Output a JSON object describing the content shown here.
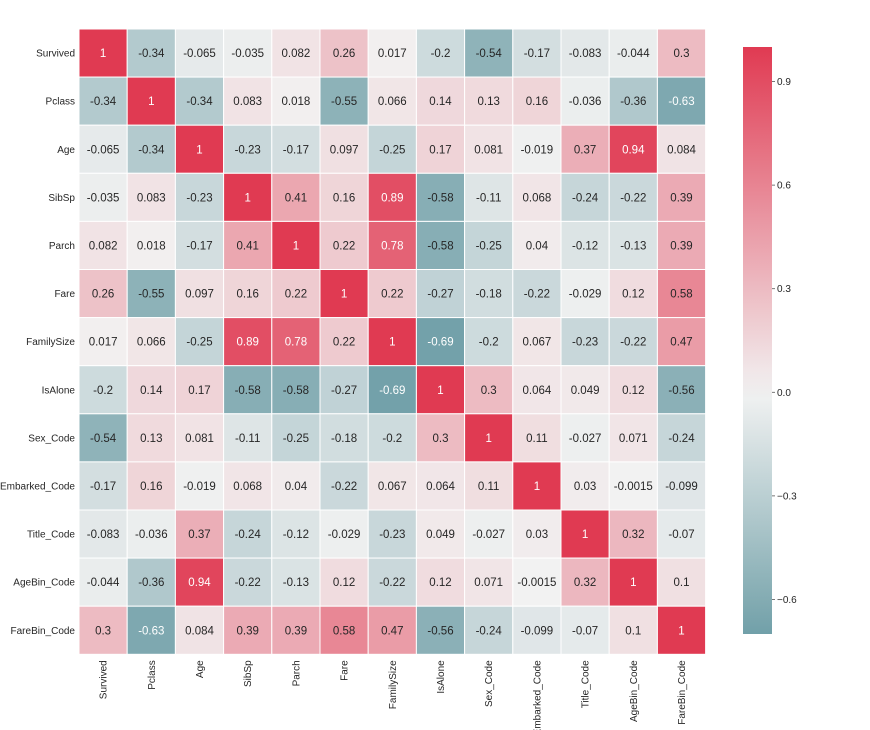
{
  "chart_data": {
    "type": "heatmap",
    "title": "",
    "xlabel": "",
    "ylabel": "",
    "rows": [
      "Survived",
      "Pclass",
      "Age",
      "SibSp",
      "Parch",
      "Fare",
      "FamilySize",
      "IsAlone",
      "Sex_Code",
      "Embarked_Code",
      "Title_Code",
      "AgeBin_Code",
      "FareBin_Code"
    ],
    "columns": [
      "Survived",
      "Pclass",
      "Age",
      "SibSp",
      "Parch",
      "Fare",
      "FamilySize",
      "IsAlone",
      "Sex_Code",
      "Embarked_Code",
      "Title_Code",
      "AgeBin_Code",
      "FareBin_Code"
    ],
    "values": [
      [
        1,
        -0.34,
        -0.065,
        -0.035,
        0.082,
        0.26,
        0.017,
        -0.2,
        -0.54,
        -0.17,
        -0.083,
        -0.044,
        0.3
      ],
      [
        -0.34,
        1,
        -0.34,
        0.083,
        0.018,
        -0.55,
        0.066,
        0.14,
        0.13,
        0.16,
        -0.036,
        -0.36,
        -0.63
      ],
      [
        -0.065,
        -0.34,
        1,
        -0.23,
        -0.17,
        0.097,
        -0.25,
        0.17,
        0.081,
        -0.019,
        0.37,
        0.94,
        0.084
      ],
      [
        -0.035,
        0.083,
        -0.23,
        1,
        0.41,
        0.16,
        0.89,
        -0.58,
        -0.11,
        0.068,
        -0.24,
        -0.22,
        0.39
      ],
      [
        0.082,
        0.018,
        -0.17,
        0.41,
        1,
        0.22,
        0.78,
        -0.58,
        -0.25,
        0.04,
        -0.12,
        -0.13,
        0.39
      ],
      [
        0.26,
        -0.55,
        0.097,
        0.16,
        0.22,
        1,
        0.22,
        -0.27,
        -0.18,
        -0.22,
        -0.029,
        0.12,
        0.58
      ],
      [
        0.017,
        0.066,
        -0.25,
        0.89,
        0.78,
        0.22,
        1,
        -0.69,
        -0.2,
        0.067,
        -0.23,
        -0.22,
        0.47
      ],
      [
        -0.2,
        0.14,
        0.17,
        -0.58,
        -0.58,
        -0.27,
        -0.69,
        1,
        0.3,
        0.064,
        0.049,
        0.12,
        -0.56
      ],
      [
        -0.54,
        0.13,
        0.081,
        -0.11,
        -0.25,
        -0.18,
        -0.2,
        0.3,
        1,
        0.11,
        -0.027,
        0.071,
        -0.24
      ],
      [
        -0.17,
        0.16,
        -0.019,
        0.068,
        0.04,
        -0.22,
        0.067,
        0.064,
        0.11,
        1,
        0.03,
        -0.0015,
        -0.099
      ],
      [
        -0.083,
        -0.036,
        0.37,
        -0.24,
        -0.12,
        -0.029,
        -0.23,
        0.049,
        -0.027,
        0.03,
        1,
        0.32,
        -0.07
      ],
      [
        -0.044,
        -0.36,
        0.94,
        -0.22,
        -0.13,
        0.12,
        -0.22,
        0.12,
        0.071,
        -0.0015,
        0.32,
        1,
        0.1
      ],
      [
        0.3,
        -0.63,
        0.084,
        0.39,
        0.39,
        0.58,
        0.47,
        -0.56,
        -0.24,
        -0.099,
        -0.07,
        0.1,
        1
      ]
    ],
    "value_labels": [
      [
        "1",
        "-0.34",
        "-0.065",
        "-0.035",
        "0.082",
        "0.26",
        "0.017",
        "-0.2",
        "-0.54",
        "-0.17",
        "-0.083",
        "-0.044",
        "0.3"
      ],
      [
        "-0.34",
        "1",
        "-0.34",
        "0.083",
        "0.018",
        "-0.55",
        "0.066",
        "0.14",
        "0.13",
        "0.16",
        "-0.036",
        "-0.36",
        "-0.63"
      ],
      [
        "-0.065",
        "-0.34",
        "1",
        "-0.23",
        "-0.17",
        "0.097",
        "-0.25",
        "0.17",
        "0.081",
        "-0.019",
        "0.37",
        "0.94",
        "0.084"
      ],
      [
        "-0.035",
        "0.083",
        "-0.23",
        "1",
        "0.41",
        "0.16",
        "0.89",
        "-0.58",
        "-0.11",
        "0.068",
        "-0.24",
        "-0.22",
        "0.39"
      ],
      [
        "0.082",
        "0.018",
        "-0.17",
        "0.41",
        "1",
        "0.22",
        "0.78",
        "-0.58",
        "-0.25",
        "0.04",
        "-0.12",
        "-0.13",
        "0.39"
      ],
      [
        "0.26",
        "-0.55",
        "0.097",
        "0.16",
        "0.22",
        "1",
        "0.22",
        "-0.27",
        "-0.18",
        "-0.22",
        "-0.029",
        "0.12",
        "0.58"
      ],
      [
        "0.017",
        "0.066",
        "-0.25",
        "0.89",
        "0.78",
        "0.22",
        "1",
        "-0.69",
        "-0.2",
        "0.067",
        "-0.23",
        "-0.22",
        "0.47"
      ],
      [
        "-0.2",
        "0.14",
        "0.17",
        "-0.58",
        "-0.58",
        "-0.27",
        "-0.69",
        "1",
        "0.3",
        "0.064",
        "0.049",
        "0.12",
        "-0.56"
      ],
      [
        "-0.54",
        "0.13",
        "0.081",
        "-0.11",
        "-0.25",
        "-0.18",
        "-0.2",
        "0.3",
        "1",
        "0.11",
        "-0.027",
        "0.071",
        "-0.24"
      ],
      [
        "-0.17",
        "0.16",
        "-0.019",
        "0.068",
        "0.04",
        "-0.22",
        "0.067",
        "0.064",
        "0.11",
        "1",
        "0.03",
        "-0.0015",
        "-0.099"
      ],
      [
        "-0.083",
        "-0.036",
        "0.37",
        "-0.24",
        "-0.12",
        "-0.029",
        "-0.23",
        "0.049",
        "-0.027",
        "0.03",
        "1",
        "0.32",
        "-0.07"
      ],
      [
        "-0.044",
        "-0.36",
        "0.94",
        "-0.22",
        "-0.13",
        "0.12",
        "-0.22",
        "0.12",
        "0.071",
        "-0.0015",
        "0.32",
        "1",
        "0.1"
      ],
      [
        "0.3",
        "-0.63",
        "0.084",
        "0.39",
        "0.39",
        "0.58",
        "0.47",
        "-0.56",
        "-0.24",
        "-0.099",
        "-0.07",
        "0.1",
        "1"
      ]
    ],
    "colorbar": {
      "vmin": -0.7,
      "vmax": 1.0,
      "ticks": [
        0.9,
        0.6,
        0.3,
        0.0,
        -0.3,
        -0.6
      ],
      "tick_labels": [
        "0.9",
        "0.6",
        "0.3",
        "0.0",
        "−0.3",
        "−0.6"
      ],
      "placement": "right"
    },
    "colors": {
      "negative": "#3a7d89",
      "center": "#f2f2f2",
      "positive": "#e03a52",
      "grid_line": "#ffffff",
      "dark_text": "#262626",
      "light_text": "#ffffff"
    },
    "grid": true
  }
}
